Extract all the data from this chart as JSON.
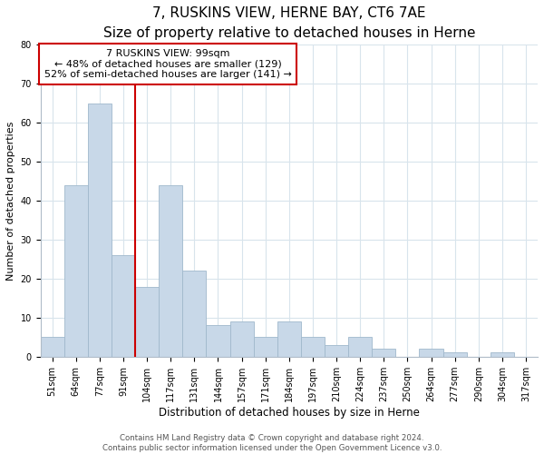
{
  "title": "7, RUSKINS VIEW, HERNE BAY, CT6 7AE",
  "subtitle": "Size of property relative to detached houses in Herne",
  "xlabel": "Distribution of detached houses by size in Herne",
  "ylabel": "Number of detached properties",
  "bar_labels": [
    "51sqm",
    "64sqm",
    "77sqm",
    "91sqm",
    "104sqm",
    "117sqm",
    "131sqm",
    "144sqm",
    "157sqm",
    "171sqm",
    "184sqm",
    "197sqm",
    "210sqm",
    "224sqm",
    "237sqm",
    "250sqm",
    "264sqm",
    "277sqm",
    "290sqm",
    "304sqm",
    "317sqm"
  ],
  "bar_values": [
    5,
    44,
    65,
    26,
    18,
    44,
    22,
    8,
    9,
    5,
    9,
    5,
    3,
    5,
    2,
    0,
    2,
    1,
    0,
    1,
    0
  ],
  "bar_color": "#c8d8e8",
  "bar_edge_color": "#a0b8cc",
  "vline_x": 3.5,
  "vline_color": "#cc0000",
  "annotation_line1": "7 RUSKINS VIEW: 99sqm",
  "annotation_line2": "← 48% of detached houses are smaller (129)",
  "annotation_line3": "52% of semi-detached houses are larger (141) →",
  "annotation_box_color": "#ffffff",
  "annotation_box_edge": "#cc0000",
  "ylim": [
    0,
    80
  ],
  "yticks": [
    0,
    10,
    20,
    30,
    40,
    50,
    60,
    70,
    80
  ],
  "grid_color": "#d8e4ec",
  "footer1": "Contains HM Land Registry data © Crown copyright and database right 2024.",
  "footer2": "Contains public sector information licensed under the Open Government Licence v3.0.",
  "title_fontsize": 11,
  "tick_fontsize": 7,
  "ylabel_fontsize": 8,
  "xlabel_fontsize": 8.5
}
